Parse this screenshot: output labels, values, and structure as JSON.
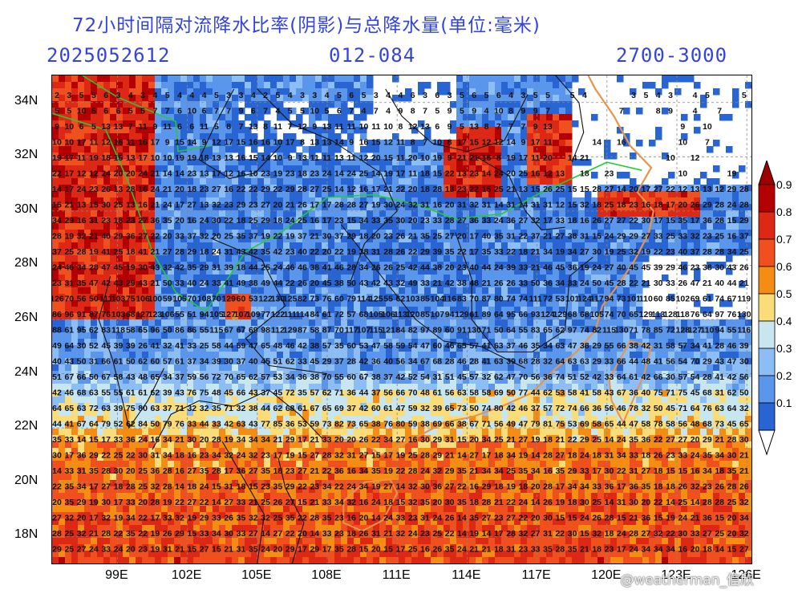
{
  "header": {
    "title": "72小时间隔对流降水比率(阴影)与总降水量(单位:毫米)",
    "date": "2025052612",
    "hours": "012-084",
    "range": "2700-3000"
  },
  "map": {
    "lat_labels": [
      "34N",
      "32N",
      "30N",
      "28N",
      "26N",
      "24N",
      "22N",
      "20N",
      "18N"
    ],
    "lon_labels": [
      "99E",
      "102E",
      "105E",
      "108E",
      "111E",
      "114E",
      "117E",
      "120E",
      "123E",
      "126E"
    ],
    "lat_values": [
      34,
      32,
      30,
      28,
      26,
      24,
      22,
      20,
      18
    ],
    "lon_values": [
      99,
      102,
      105,
      108,
      111,
      114,
      117,
      120,
      123,
      126
    ],
    "lon_range": [
      96.2,
      126.2
    ],
    "lat_range": [
      17.0,
      35.0
    ]
  },
  "colorbar": {
    "labels": [
      "0.9",
      "0.8",
      "0.7",
      "0.6",
      "0.5",
      "0.4",
      "0.3",
      "0.2",
      "0.1"
    ],
    "colors": [
      "#b40000",
      "#dc2814",
      "#f0501e",
      "#f58c14",
      "#fadc78",
      "#c8e6f0",
      "#8cbef5",
      "#5a96eb",
      "#2864d2"
    ],
    "top_color": "#a00000",
    "bottom_color": "#ffffff"
  },
  "watermark": {
    "text": "@weatherman_信欣"
  }
}
